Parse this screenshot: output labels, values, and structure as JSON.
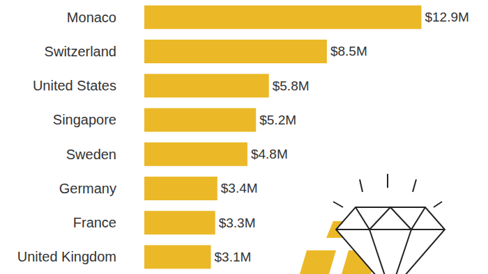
{
  "chart_data": {
    "type": "bar",
    "orientation": "horizontal",
    "categories": [
      "Monaco",
      "Switzerland",
      "United States",
      "Singapore",
      "Sweden",
      "Germany",
      "France",
      "United Kingdom"
    ],
    "values": [
      12.9,
      8.5,
      5.8,
      5.2,
      4.8,
      3.4,
      3.3,
      3.1
    ],
    "value_labels": [
      "$12.9M",
      "$8.5M",
      "$5.8M",
      "$5.2M",
      "$4.8M",
      "$3.4M",
      "$3.3M",
      "$3.1M"
    ],
    "color": "#ebb928",
    "xlim": [
      0,
      16
    ],
    "data_labels": true,
    "tick_labels": "y",
    "grid": false
  }
}
